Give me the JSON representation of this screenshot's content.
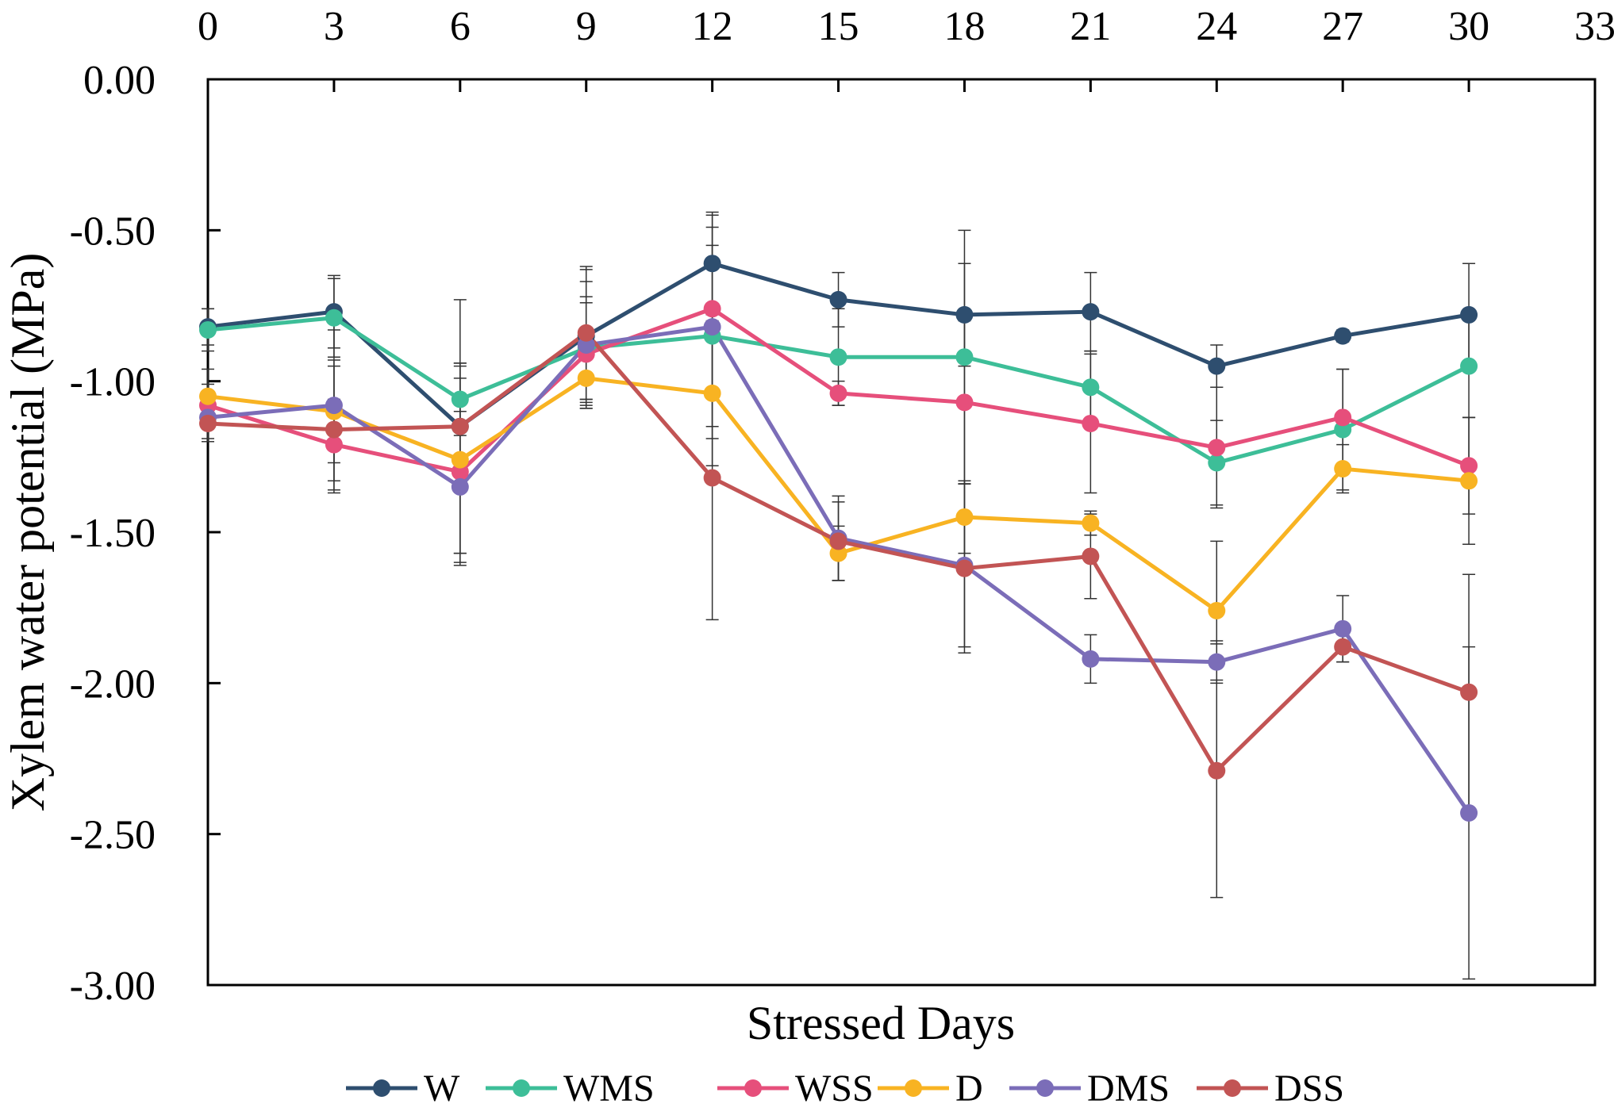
{
  "chart_data": {
    "type": "line",
    "title": "",
    "xlabel": "Stressed Days",
    "ylabel": "Xylem water potential (MPa)",
    "x_axis_position": "top",
    "xlim": [
      0,
      33
    ],
    "ylim": [
      -3.0,
      0.0
    ],
    "xticks": [
      "0",
      "3",
      "6",
      "9",
      "12",
      "15",
      "18",
      "21",
      "24",
      "27",
      "30",
      "33"
    ],
    "yticks": [
      "0.00",
      "-0.50",
      "-1.00",
      "-1.50",
      "-2.00",
      "-2.50",
      "-3.00"
    ],
    "grid": false,
    "legend_position": "bottom",
    "x": [
      0,
      3,
      6,
      9,
      12,
      15,
      18,
      21,
      24,
      27,
      30
    ],
    "series": [
      {
        "name": "W",
        "color": "#2E4E6F",
        "values": [
          -0.82,
          -0.77,
          -1.15,
          -0.85,
          -0.61,
          -0.73,
          -0.78,
          -0.77,
          -0.95,
          -0.85,
          -0.78
        ],
        "errors": [
          0.06,
          0.12,
          0.21,
          0.22,
          0.17,
          0.09,
          0.17,
          0.13,
          0.07,
          0.02,
          0.17
        ]
      },
      {
        "name": "WMS",
        "color": "#3DBE98",
        "values": [
          -0.83,
          -0.79,
          -1.06,
          -0.89,
          -0.85,
          -0.92,
          -0.92,
          -1.02,
          -1.27,
          -1.16,
          -0.95
        ],
        "errors": [
          0.07,
          0.13,
          0.12,
          0.17,
          0.3,
          0.16,
          0.42,
          0.12,
          0.14,
          0.2,
          0.17
        ]
      },
      {
        "name": "WSS",
        "color": "#E64F7B",
        "values": [
          -1.08,
          -1.21,
          -1.3,
          -0.91,
          -0.76,
          -1.04,
          -1.07,
          -1.14,
          -1.22,
          -1.12,
          -1.28
        ],
        "errors": [
          0.07,
          0.15,
          0.31,
          0.17,
          0.27,
          0.04,
          0.27,
          0.23,
          0.2,
          0.16,
          0.16
        ]
      },
      {
        "name": "D",
        "color": "#F8B322",
        "values": [
          -1.05,
          -1.1,
          -1.26,
          -0.99,
          -1.04,
          -1.57,
          -1.45,
          -1.47,
          -1.76,
          -1.29,
          -1.33
        ],
        "errors": [
          0.09,
          0.17,
          0.31,
          0.1,
          0.24,
          0.09,
          0.12,
          0.04,
          0.23,
          0.08,
          0.21
        ]
      },
      {
        "name": "DMS",
        "color": "#7B6DB8",
        "values": [
          -1.12,
          -1.08,
          -1.35,
          -0.88,
          -0.82,
          -1.52,
          -1.61,
          -1.92,
          -1.93,
          -1.82,
          -2.43
        ],
        "errors": [
          0.07,
          0.25,
          0.25,
          0.21,
          0.37,
          0.14,
          0.27,
          0.08,
          0.07,
          0.11,
          0.55
        ]
      },
      {
        "name": "DSS",
        "color": "#C25454",
        "values": [
          -1.14,
          -1.16,
          -1.15,
          -0.84,
          -1.32,
          -1.53,
          -1.62,
          -1.58,
          -2.29,
          -1.88,
          -2.03
        ],
        "errors": [
          0.06,
          0.21,
          0.42,
          0.22,
          0.47,
          0.13,
          0.28,
          0.14,
          0.42,
          0.05,
          0.39
        ]
      }
    ]
  }
}
